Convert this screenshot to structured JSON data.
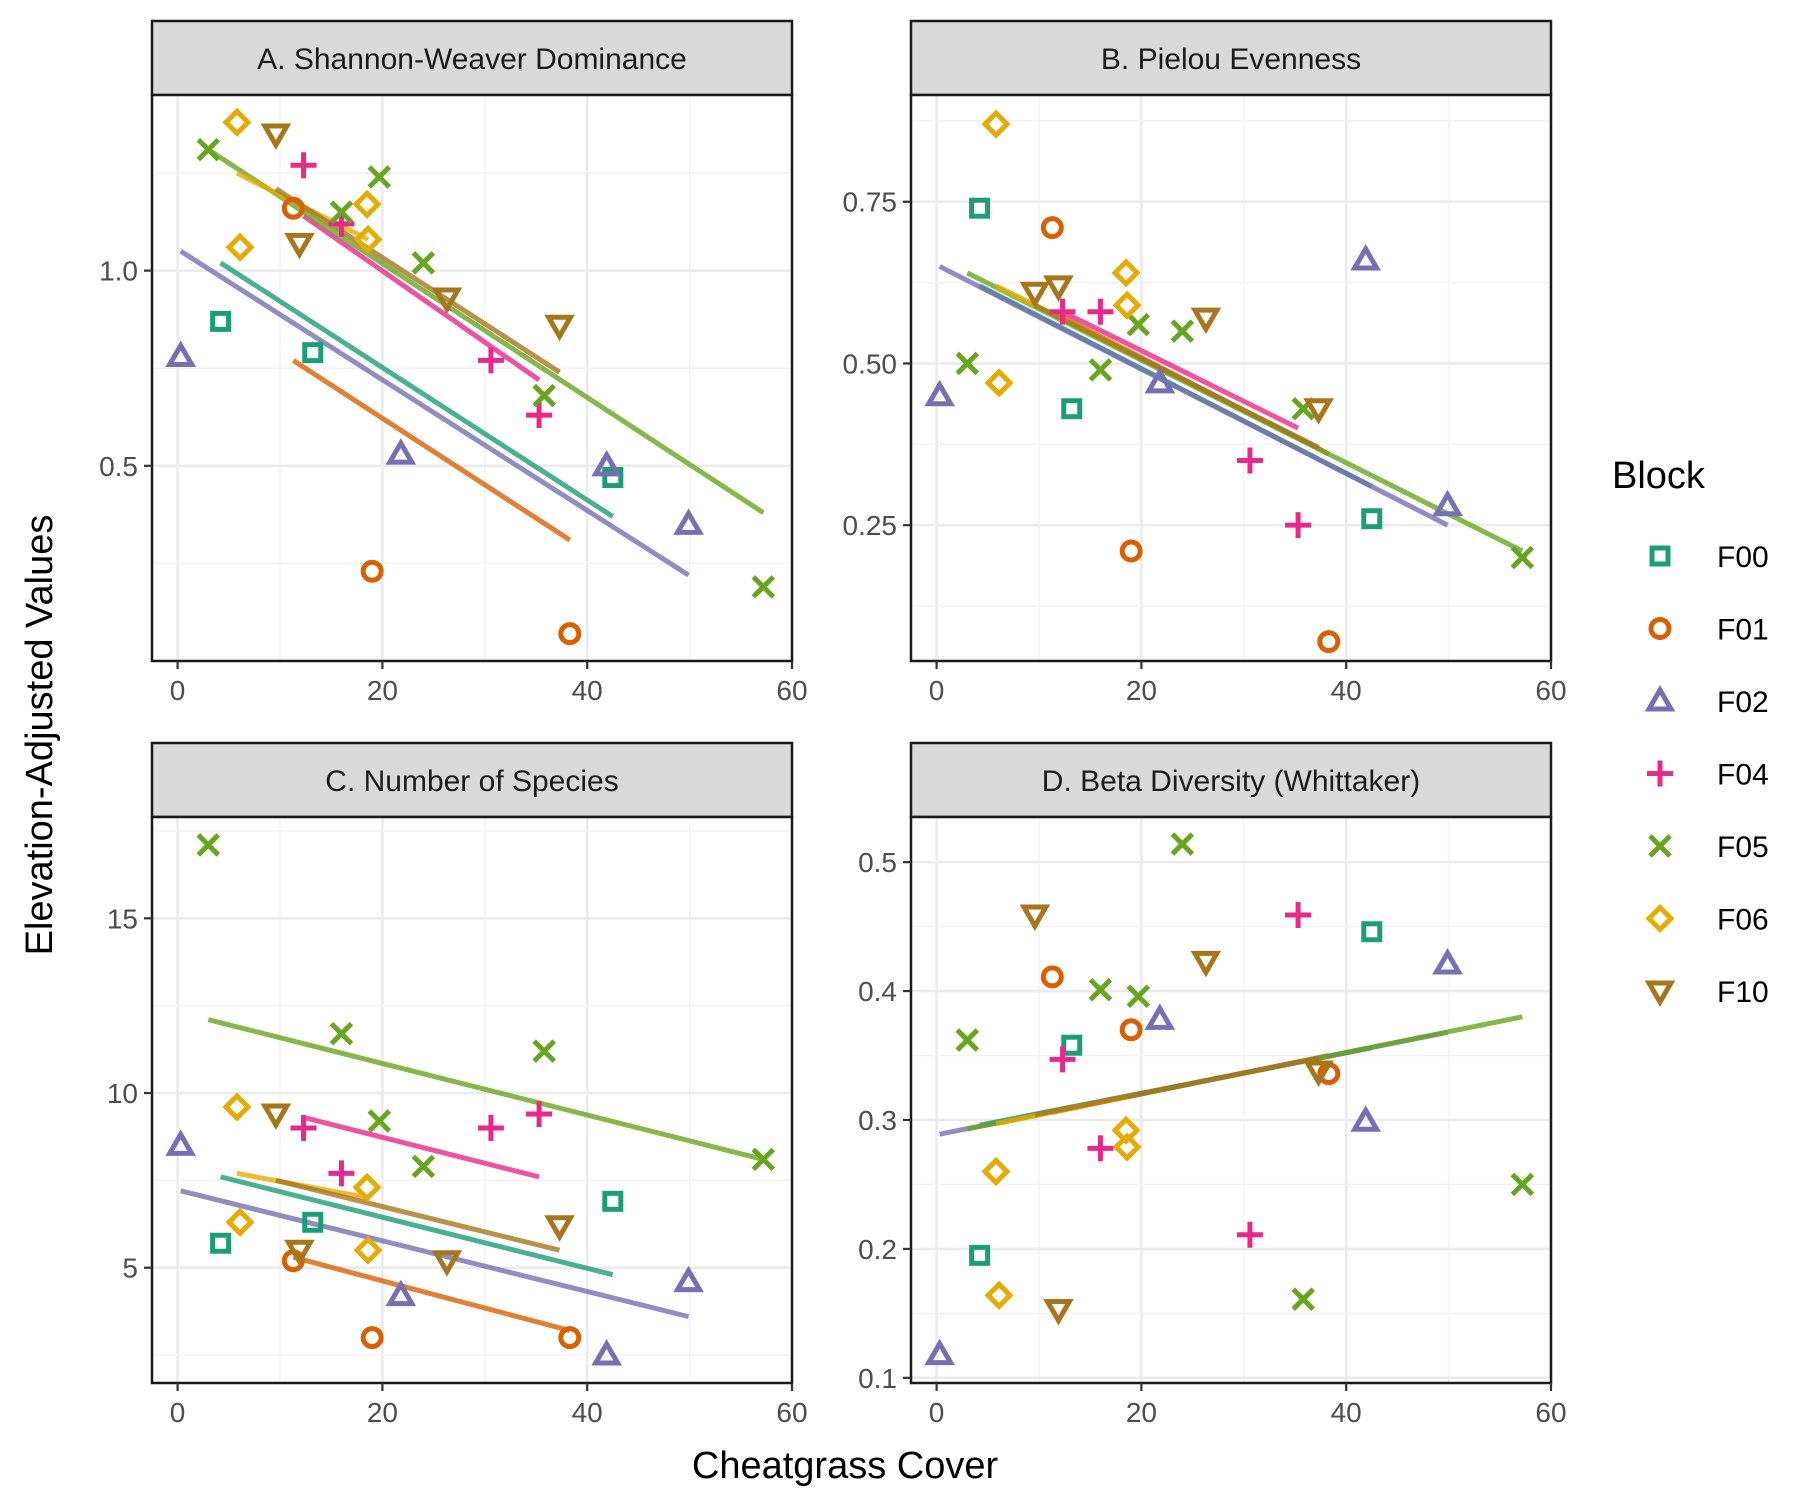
{
  "xlabel": "Cheatgrass Cover",
  "ylabel": "Elevation-Adjusted Values",
  "legend": {
    "title": "Block",
    "position": "right",
    "items": [
      {
        "name": "F00",
        "color": "#1b9e77",
        "shape": "square"
      },
      {
        "name": "F01",
        "color": "#d95f02",
        "shape": "circle"
      },
      {
        "name": "F02",
        "color": "#7570b3",
        "shape": "triangle-up"
      },
      {
        "name": "F04",
        "color": "#e7298a",
        "shape": "plus"
      },
      {
        "name": "F05",
        "color": "#66a61e",
        "shape": "cross"
      },
      {
        "name": "F06",
        "color": "#e6ab02",
        "shape": "diamond"
      },
      {
        "name": "F10",
        "color": "#a6761d",
        "shape": "triangle-down"
      }
    ]
  },
  "chart_data": [
    {
      "type": "scatter",
      "title": "A. Shannon-Weaver Dominance",
      "xlim": [
        -2.5,
        60
      ],
      "ylim": [
        0.0,
        1.45
      ],
      "xticks": [
        0,
        20,
        40,
        60
      ],
      "yticks": [
        0.5,
        1.0
      ],
      "ytick_labels": [
        "0.5",
        "1.0"
      ],
      "grid": true,
      "series": [
        {
          "name": "F00",
          "points": [
            [
              4.2,
              0.87
            ],
            [
              13.2,
              0.79
            ],
            [
              42.5,
              0.47
            ]
          ],
          "fit": [
            [
              4.2,
              1.02
            ],
            [
              42.5,
              0.37
            ]
          ]
        },
        {
          "name": "F01",
          "points": [
            [
              11.3,
              1.16
            ],
            [
              19.0,
              0.23
            ],
            [
              38.3,
              0.07
            ]
          ],
          "fit": [
            [
              11.3,
              0.77
            ],
            [
              38.3,
              0.31
            ]
          ]
        },
        {
          "name": "F02",
          "points": [
            [
              0.3,
              0.78
            ],
            [
              21.8,
              0.53
            ],
            [
              41.9,
              0.5
            ],
            [
              49.9,
              0.35
            ]
          ],
          "fit": [
            [
              0.3,
              1.05
            ],
            [
              49.9,
              0.22
            ]
          ]
        },
        {
          "name": "F04",
          "points": [
            [
              12.3,
              1.27
            ],
            [
              16.0,
              1.12
            ],
            [
              30.6,
              0.77
            ],
            [
              35.3,
              0.63
            ]
          ],
          "fit": [
            [
              12.3,
              1.14
            ],
            [
              35.3,
              0.72
            ]
          ]
        },
        {
          "name": "F05",
          "points": [
            [
              3.0,
              1.31
            ],
            [
              16.0,
              1.15
            ],
            [
              19.7,
              1.24
            ],
            [
              24.0,
              1.02
            ],
            [
              35.8,
              0.68
            ],
            [
              57.2,
              0.19
            ]
          ],
          "fit": [
            [
              3.0,
              1.31
            ],
            [
              57.2,
              0.38
            ]
          ]
        },
        {
          "name": "F06",
          "points": [
            [
              5.8,
              1.38
            ],
            [
              6.1,
              1.06
            ],
            [
              18.5,
              1.17
            ],
            [
              18.6,
              1.08
            ]
          ],
          "fit": [
            [
              5.8,
              1.25
            ],
            [
              18.6,
              1.08
            ]
          ]
        },
        {
          "name": "F10",
          "points": [
            [
              9.6,
              1.35
            ],
            [
              11.9,
              1.07
            ],
            [
              26.3,
              0.93
            ],
            [
              37.3,
              0.86
            ]
          ],
          "fit": [
            [
              9.6,
              1.21
            ],
            [
              37.3,
              0.74
            ]
          ]
        }
      ]
    },
    {
      "type": "scatter",
      "title": "B. Pielou Evenness",
      "xlim": [
        -2.5,
        60
      ],
      "ylim": [
        0.04,
        0.915
      ],
      "xticks": [
        0,
        20,
        40,
        60
      ],
      "yticks": [
        0.25,
        0.5,
        0.75
      ],
      "ytick_labels": [
        "0.25",
        "0.50",
        "0.75"
      ],
      "grid": true,
      "series": [
        {
          "name": "F00",
          "points": [
            [
              4.2,
              0.74
            ],
            [
              13.2,
              0.43
            ],
            [
              42.5,
              0.26
            ]
          ],
          "fit": [
            [
              4.2,
              0.62
            ],
            [
              42.5,
              0.31
            ]
          ]
        },
        {
          "name": "F01",
          "points": [
            [
              11.3,
              0.71
            ],
            [
              19.0,
              0.21
            ],
            [
              38.3,
              0.07
            ]
          ],
          "fit": [
            [
              11.3,
              0.58
            ],
            [
              38.3,
              0.36
            ]
          ]
        },
        {
          "name": "F02",
          "points": [
            [
              0.3,
              0.45
            ],
            [
              21.8,
              0.47
            ],
            [
              41.9,
              0.66
            ],
            [
              49.9,
              0.28
            ]
          ],
          "fit": [
            [
              0.3,
              0.65
            ],
            [
              49.9,
              0.25
            ]
          ]
        },
        {
          "name": "F04",
          "points": [
            [
              12.3,
              0.58
            ],
            [
              16.0,
              0.58
            ],
            [
              30.6,
              0.35
            ],
            [
              35.3,
              0.25
            ]
          ],
          "fit": [
            [
              12.3,
              0.58
            ],
            [
              35.3,
              0.4
            ]
          ]
        },
        {
          "name": "F05",
          "points": [
            [
              3.0,
              0.5
            ],
            [
              16.0,
              0.49
            ],
            [
              19.7,
              0.56
            ],
            [
              24.0,
              0.55
            ],
            [
              35.8,
              0.43
            ],
            [
              57.2,
              0.2
            ]
          ],
          "fit": [
            [
              3.0,
              0.64
            ],
            [
              57.2,
              0.21
            ]
          ]
        },
        {
          "name": "F06",
          "points": [
            [
              5.8,
              0.87
            ],
            [
              6.1,
              0.47
            ],
            [
              18.5,
              0.64
            ],
            [
              18.6,
              0.59
            ]
          ],
          "fit": [
            [
              5.8,
              0.62
            ],
            [
              18.6,
              0.52
            ]
          ]
        },
        {
          "name": "F10",
          "points": [
            [
              9.6,
              0.61
            ],
            [
              11.9,
              0.62
            ],
            [
              26.3,
              0.57
            ],
            [
              37.3,
              0.43
            ]
          ],
          "fit": [
            [
              9.6,
              0.59
            ],
            [
              37.3,
              0.37
            ]
          ]
        }
      ]
    },
    {
      "type": "scatter",
      "title": "C. Number of Species",
      "xlim": [
        -2.5,
        60
      ],
      "ylim": [
        1.7,
        17.9
      ],
      "xticks": [
        0,
        20,
        40,
        60
      ],
      "yticks": [
        5,
        10,
        15
      ],
      "ytick_labels": [
        "5",
        "10",
        "15"
      ],
      "grid": true,
      "series": [
        {
          "name": "F00",
          "points": [
            [
              4.2,
              5.7
            ],
            [
              13.2,
              6.3
            ],
            [
              42.5,
              6.9
            ]
          ],
          "fit": [
            [
              4.2,
              7.6
            ],
            [
              42.5,
              4.8
            ]
          ]
        },
        {
          "name": "F01",
          "points": [
            [
              11.3,
              5.2
            ],
            [
              19.0,
              3.0
            ],
            [
              38.3,
              3.0
            ]
          ],
          "fit": [
            [
              11.3,
              5.3
            ],
            [
              38.3,
              3.2
            ]
          ]
        },
        {
          "name": "F02",
          "points": [
            [
              0.3,
              8.5
            ],
            [
              21.8,
              4.2
            ],
            [
              41.9,
              2.5
            ],
            [
              49.9,
              4.6
            ]
          ],
          "fit": [
            [
              0.3,
              7.2
            ],
            [
              49.9,
              3.6
            ]
          ]
        },
        {
          "name": "F04",
          "points": [
            [
              12.3,
              9.0
            ],
            [
              16.0,
              7.7
            ],
            [
              30.6,
              9.0
            ],
            [
              35.3,
              9.4
            ]
          ],
          "fit": [
            [
              12.3,
              9.3
            ],
            [
              35.3,
              7.6
            ]
          ]
        },
        {
          "name": "F05",
          "points": [
            [
              3.0,
              17.1
            ],
            [
              16.0,
              11.7
            ],
            [
              19.7,
              9.2
            ],
            [
              24.0,
              7.9
            ],
            [
              35.8,
              11.2
            ],
            [
              57.2,
              8.1
            ]
          ],
          "fit": [
            [
              3.0,
              12.1
            ],
            [
              57.2,
              8.1
            ]
          ]
        },
        {
          "name": "F06",
          "points": [
            [
              5.8,
              9.6
            ],
            [
              6.1,
              6.3
            ],
            [
              18.5,
              7.3
            ],
            [
              18.6,
              5.5
            ]
          ],
          "fit": [
            [
              5.8,
              7.7
            ],
            [
              18.6,
              7.0
            ]
          ]
        },
        {
          "name": "F10",
          "points": [
            [
              9.6,
              9.4
            ],
            [
              11.9,
              5.5
            ],
            [
              26.3,
              5.2
            ],
            [
              37.3,
              6.2
            ]
          ],
          "fit": [
            [
              9.6,
              7.5
            ],
            [
              37.3,
              5.5
            ]
          ]
        }
      ]
    },
    {
      "type": "scatter",
      "title": "D. Beta Diversity (Whittaker)",
      "xlim": [
        -2.5,
        60
      ],
      "ylim": [
        0.096,
        0.535
      ],
      "xticks": [
        0,
        20,
        40,
        60
      ],
      "yticks": [
        0.1,
        0.2,
        0.3,
        0.4,
        0.5
      ],
      "ytick_labels": [
        "0.1",
        "0.2",
        "0.3",
        "0.4",
        "0.5"
      ],
      "grid": true,
      "series": [
        {
          "name": "F00",
          "points": [
            [
              4.2,
              0.195
            ],
            [
              13.2,
              0.358
            ],
            [
              42.5,
              0.446
            ]
          ],
          "fit": [
            [
              4.2,
              0.296
            ],
            [
              42.5,
              0.356
            ]
          ]
        },
        {
          "name": "F01",
          "points": [
            [
              11.3,
              0.411
            ],
            [
              19.0,
              0.37
            ],
            [
              38.3,
              0.336
            ]
          ],
          "fit": [
            [
              11.3,
              0.306
            ],
            [
              38.3,
              0.35
            ]
          ]
        },
        {
          "name": "F02",
          "points": [
            [
              0.3,
              0.118
            ],
            [
              21.8,
              0.378
            ],
            [
              41.9,
              0.299
            ],
            [
              49.9,
              0.421
            ]
          ],
          "fit": [
            [
              0.3,
              0.289
            ],
            [
              49.9,
              0.368
            ]
          ]
        },
        {
          "name": "F04",
          "points": [
            [
              12.3,
              0.347
            ],
            [
              16.0,
              0.278
            ],
            [
              30.6,
              0.211
            ],
            [
              35.3,
              0.459
            ]
          ],
          "fit": [
            [
              12.3,
              0.308
            ],
            [
              35.3,
              0.345
            ]
          ]
        },
        {
          "name": "F05",
          "points": [
            [
              3.0,
              0.362
            ],
            [
              16.0,
              0.401
            ],
            [
              19.7,
              0.396
            ],
            [
              24.0,
              0.514
            ],
            [
              35.8,
              0.161
            ],
            [
              57.2,
              0.25
            ]
          ],
          "fit": [
            [
              3.0,
              0.293
            ],
            [
              57.2,
              0.38
            ]
          ]
        },
        {
          "name": "F06",
          "points": [
            [
              5.8,
              0.26
            ],
            [
              6.1,
              0.164
            ],
            [
              18.5,
              0.292
            ],
            [
              18.6,
              0.279
            ]
          ],
          "fit": [
            [
              5.8,
              0.297
            ],
            [
              18.6,
              0.318
            ]
          ]
        },
        {
          "name": "F10",
          "points": [
            [
              9.6,
              0.459
            ],
            [
              11.9,
              0.153
            ],
            [
              26.3,
              0.423
            ],
            [
              37.3,
              0.338
            ]
          ],
          "fit": [
            [
              9.6,
              0.304
            ],
            [
              37.3,
              0.348
            ]
          ]
        }
      ]
    }
  ]
}
